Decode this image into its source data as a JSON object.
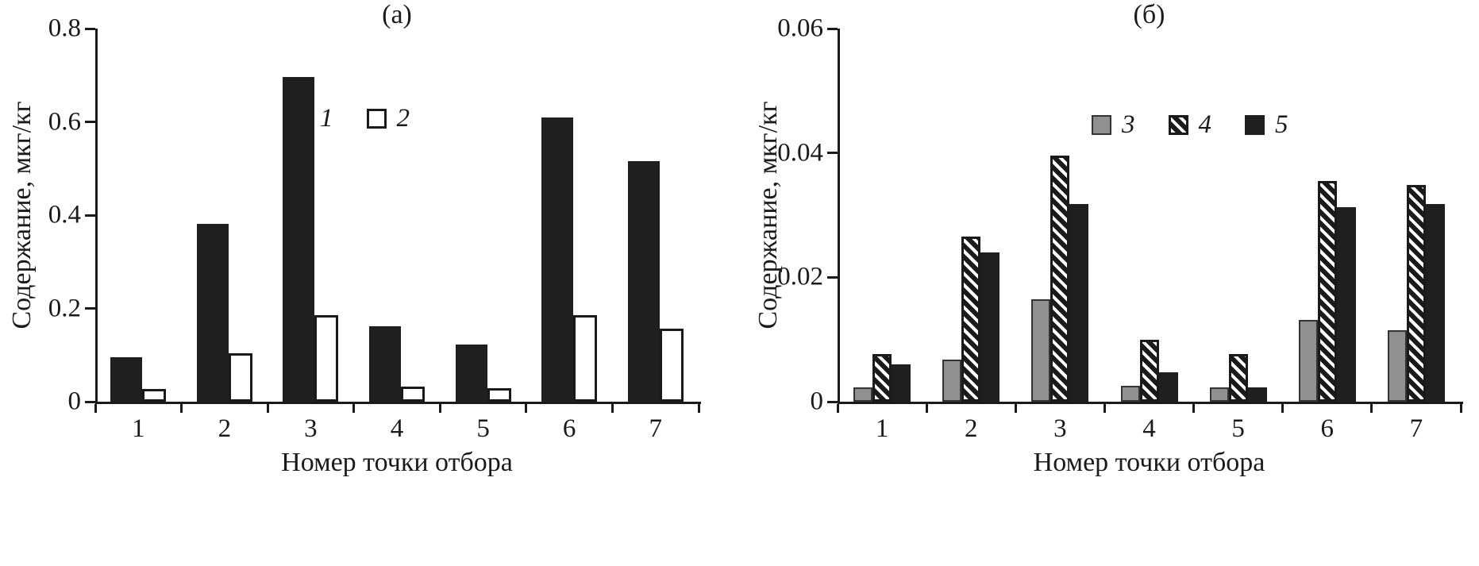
{
  "figure": {
    "description": "Two-panel grouped bar chart figure",
    "panels": [
      "(а)",
      "(б)"
    ]
  },
  "colors": {
    "background": "#ffffff",
    "axis": "#1a1a1a",
    "bar_black": "#1f1f1f",
    "bar_white": "#ffffff",
    "bar_gray": "#909090",
    "hatch_stripe": "#1a1a1a"
  },
  "chart_data": [
    {
      "type": "bar",
      "panel_label": "(а)",
      "title": "(а)",
      "xlabel": "Номер точки отбора",
      "ylabel": "Содержание, мкг/кг",
      "categories": [
        "1",
        "2",
        "3",
        "4",
        "5",
        "6",
        "7"
      ],
      "ylim": [
        0,
        0.8
      ],
      "yticks": [
        {
          "value": 0,
          "label": "0"
        },
        {
          "value": 0.2,
          "label": "0.2"
        },
        {
          "value": 0.4,
          "label": "0.4"
        },
        {
          "value": 0.6,
          "label": "0.6"
        },
        {
          "value": 0.8,
          "label": "0.8"
        }
      ],
      "grid": false,
      "legend_position": "inside-top-center",
      "legend_entries": [
        "1",
        "2"
      ],
      "series": [
        {
          "name": "1",
          "fill": "black",
          "values": [
            0.096,
            0.381,
            0.696,
            0.162,
            0.123,
            0.61,
            0.516
          ]
        },
        {
          "name": "2",
          "fill": "white",
          "values": [
            0.027,
            0.104,
            0.186,
            0.032,
            0.029,
            0.186,
            0.156
          ]
        }
      ]
    },
    {
      "type": "bar",
      "panel_label": "(б)",
      "title": "(б)",
      "xlabel": "Номер точки отбора",
      "ylabel": "Содержание, мкг/кг",
      "categories": [
        "1",
        "2",
        "3",
        "4",
        "5",
        "6",
        "7"
      ],
      "ylim": [
        0,
        0.06
      ],
      "yticks": [
        {
          "value": 0,
          "label": "0"
        },
        {
          "value": 0.02,
          "label": "0.02"
        },
        {
          "value": 0.04,
          "label": "0.04"
        },
        {
          "value": 0.06,
          "label": "0.06"
        }
      ],
      "grid": false,
      "legend_position": "inside-top-center",
      "legend_entries": [
        "3",
        "4",
        "5"
      ],
      "series": [
        {
          "name": "3",
          "fill": "gray",
          "values": [
            0.0023,
            0.0068,
            0.0165,
            0.0026,
            0.0023,
            0.0131,
            0.0115
          ]
        },
        {
          "name": "4",
          "fill": "hatch",
          "values": [
            0.0076,
            0.0265,
            0.0396,
            0.01,
            0.0076,
            0.0355,
            0.0349
          ]
        },
        {
          "name": "5",
          "fill": "black",
          "values": [
            0.006,
            0.024,
            0.0318,
            0.0047,
            0.0023,
            0.0313,
            0.0318
          ]
        }
      ]
    }
  ]
}
